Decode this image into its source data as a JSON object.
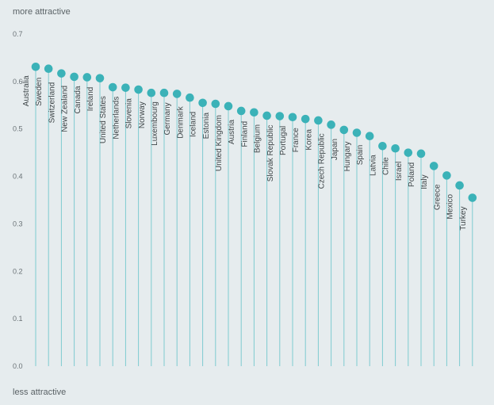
{
  "chart_data": {
    "type": "lollipop",
    "top_label": "more attractive",
    "bottom_label": "less attractive",
    "ylim": [
      0,
      0.7
    ],
    "y_ticks": [
      "0.0",
      "0.1",
      "0.2",
      "0.3",
      "0.4",
      "0.5",
      "0.6",
      "0.7"
    ],
    "colors": {
      "marker": "#3bb2b8",
      "stem": "#7ecbd0",
      "background": "#e6ecee"
    },
    "categories": [
      "Australia",
      "Sweden",
      "Switzerland",
      "New Zealand",
      "Canada",
      "Ireland",
      "United States",
      "Netherlands",
      "Slovenia",
      "Norway",
      "Luxembourg",
      "Germany",
      "Denmark",
      "Iceland",
      "Estonia",
      "United Kingdom",
      "Austria",
      "Finland",
      "Belgium",
      "Slovak Republic",
      "Portugal",
      "France",
      "Korea",
      "Czech Republic",
      "Japan",
      "Hungary",
      "Spain",
      "Latvia",
      "Chile",
      "Israel",
      "Poland",
      "Italy",
      "Greece",
      "Mexico",
      "Turkey"
    ],
    "values": [
      0.631,
      0.627,
      0.617,
      0.61,
      0.609,
      0.607,
      0.588,
      0.587,
      0.583,
      0.576,
      0.576,
      0.574,
      0.566,
      0.555,
      0.553,
      0.548,
      0.538,
      0.535,
      0.528,
      0.527,
      0.525,
      0.521,
      0.518,
      0.509,
      0.498,
      0.492,
      0.485,
      0.464,
      0.459,
      0.45,
      0.448,
      0.422,
      0.402,
      0.381,
      0.355
    ]
  }
}
